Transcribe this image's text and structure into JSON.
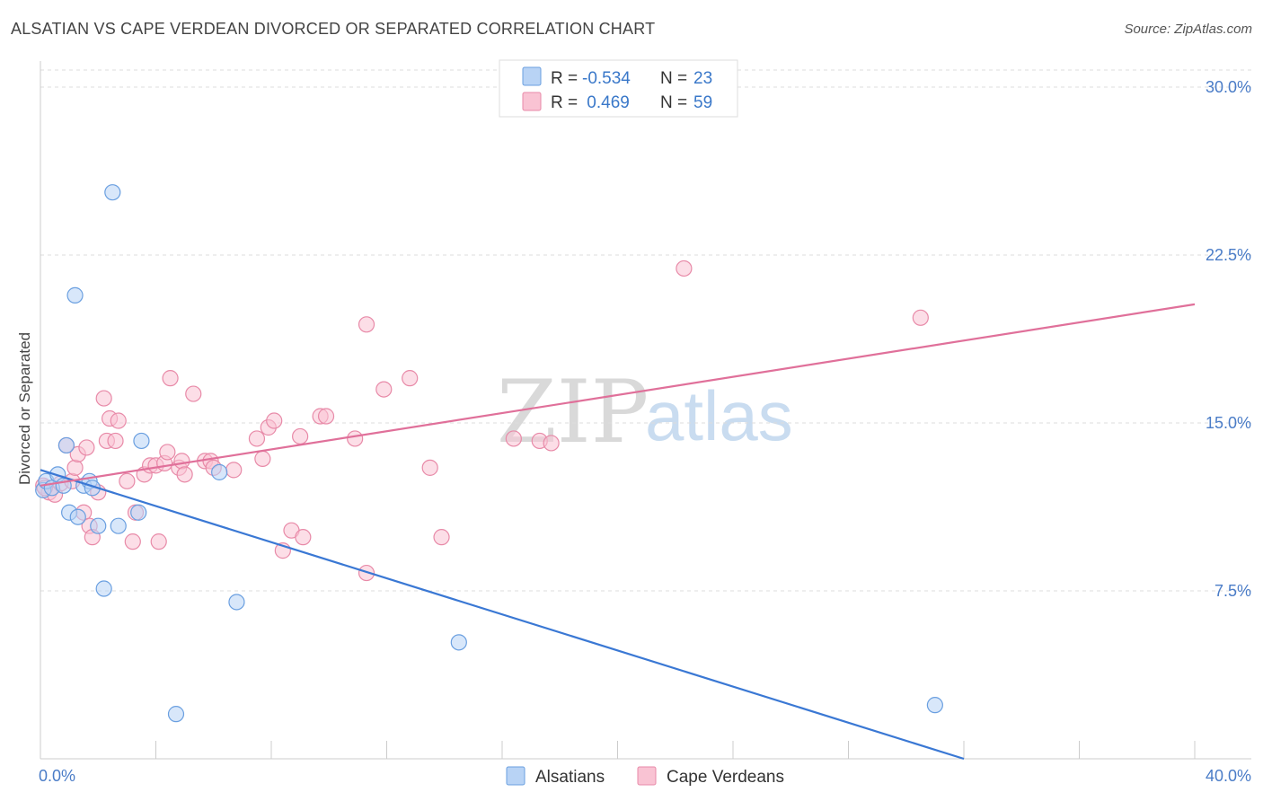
{
  "title": "ALSATIAN VS CAPE VERDEAN DIVORCED OR SEPARATED CORRELATION CHART",
  "source": "Source: ZipAtlas.com",
  "watermark": {
    "zip": "ZIP",
    "atlas": "atlas"
  },
  "colors": {
    "alsatians_fill": "#b8d3f5",
    "alsatians_stroke": "#6a9fe0",
    "alsatians_line": "#3a78d4",
    "capeverdeans_fill": "#f9c3d3",
    "capeverdeans_stroke": "#e88aa8",
    "capeverdeans_line": "#e0709a",
    "grid": "#dddddd",
    "tick_label": "#4a7cc7"
  },
  "legend": {
    "rows": [
      {
        "r_label": "R =",
        "r_value": "-0.534",
        "n_label": "N =",
        "n_value": "23"
      },
      {
        "r_label": "R =",
        "r_value": " 0.469",
        "n_label": "N =",
        "n_value": "59"
      }
    ]
  },
  "chart_data": {
    "type": "scatter",
    "title": "ALSATIAN VS CAPE VERDEAN DIVORCED OR SEPARATED CORRELATION CHART",
    "xlabel": "",
    "ylabel": "Divorced or Separated",
    "xlim": [
      0,
      40
    ],
    "ylim": [
      0,
      30.5
    ],
    "x_tick_labels": [
      "0.0%",
      "40.0%"
    ],
    "y_ticks": [
      7.5,
      15.0,
      22.5,
      30.0
    ],
    "y_tick_labels": [
      "7.5%",
      "15.0%",
      "22.5%",
      "30.0%"
    ],
    "grid": true,
    "legend_position": "bottom",
    "series": [
      {
        "name": "Alsatians",
        "points": [
          [
            0.1,
            12.0
          ],
          [
            0.2,
            12.4
          ],
          [
            0.4,
            12.1
          ],
          [
            0.6,
            12.7
          ],
          [
            0.8,
            12.2
          ],
          [
            0.9,
            14.0
          ],
          [
            1.0,
            11.0
          ],
          [
            1.3,
            10.8
          ],
          [
            1.5,
            12.2
          ],
          [
            1.7,
            12.4
          ],
          [
            1.8,
            12.1
          ],
          [
            2.0,
            10.4
          ],
          [
            2.2,
            7.6
          ],
          [
            2.5,
            25.3
          ],
          [
            2.7,
            10.4
          ],
          [
            3.4,
            11.0
          ],
          [
            3.5,
            14.2
          ],
          [
            4.7,
            2.0
          ],
          [
            6.2,
            12.8
          ],
          [
            6.8,
            7.0
          ],
          [
            1.2,
            20.7
          ],
          [
            14.5,
            5.2
          ],
          [
            31.0,
            2.4
          ]
        ],
        "trend": {
          "x": [
            0,
            32.0
          ],
          "y": [
            12.9,
            0.0
          ]
        }
      },
      {
        "name": "Cape Verdeans",
        "points": [
          [
            0.1,
            12.2
          ],
          [
            0.3,
            11.9
          ],
          [
            0.5,
            11.8
          ],
          [
            0.7,
            12.3
          ],
          [
            0.9,
            14.0
          ],
          [
            1.1,
            12.4
          ],
          [
            1.2,
            13.0
          ],
          [
            1.3,
            13.6
          ],
          [
            1.5,
            11.0
          ],
          [
            1.6,
            13.9
          ],
          [
            1.7,
            10.4
          ],
          [
            1.8,
            9.9
          ],
          [
            2.0,
            11.9
          ],
          [
            2.2,
            16.1
          ],
          [
            2.3,
            14.2
          ],
          [
            2.4,
            15.2
          ],
          [
            2.6,
            14.2
          ],
          [
            2.7,
            15.1
          ],
          [
            3.0,
            12.4
          ],
          [
            3.2,
            9.7
          ],
          [
            3.3,
            11.0
          ],
          [
            3.6,
            12.7
          ],
          [
            3.8,
            13.1
          ],
          [
            4.0,
            13.1
          ],
          [
            4.1,
            9.7
          ],
          [
            4.3,
            13.2
          ],
          [
            4.4,
            13.7
          ],
          [
            4.5,
            17.0
          ],
          [
            4.8,
            13.0
          ],
          [
            4.9,
            13.3
          ],
          [
            5.0,
            12.7
          ],
          [
            5.3,
            16.3
          ],
          [
            5.7,
            13.3
          ],
          [
            5.9,
            13.3
          ],
          [
            6.0,
            13.0
          ],
          [
            6.7,
            12.9
          ],
          [
            7.5,
            14.3
          ],
          [
            7.7,
            13.4
          ],
          [
            7.9,
            14.8
          ],
          [
            8.1,
            15.1
          ],
          [
            8.4,
            9.3
          ],
          [
            8.7,
            10.2
          ],
          [
            9.0,
            14.4
          ],
          [
            9.1,
            9.9
          ],
          [
            9.7,
            15.3
          ],
          [
            9.9,
            15.3
          ],
          [
            10.9,
            14.3
          ],
          [
            11.3,
            8.3
          ],
          [
            11.3,
            19.4
          ],
          [
            11.9,
            16.5
          ],
          [
            12.8,
            17.0
          ],
          [
            13.5,
            13.0
          ],
          [
            13.9,
            9.9
          ],
          [
            16.4,
            14.3
          ],
          [
            17.3,
            14.2
          ],
          [
            17.7,
            14.1
          ],
          [
            22.3,
            21.9
          ],
          [
            30.5,
            19.7
          ],
          [
            0.15,
            12.1
          ]
        ],
        "trend": {
          "x": [
            0,
            40
          ],
          "y": [
            12.2,
            20.3
          ]
        }
      }
    ]
  }
}
